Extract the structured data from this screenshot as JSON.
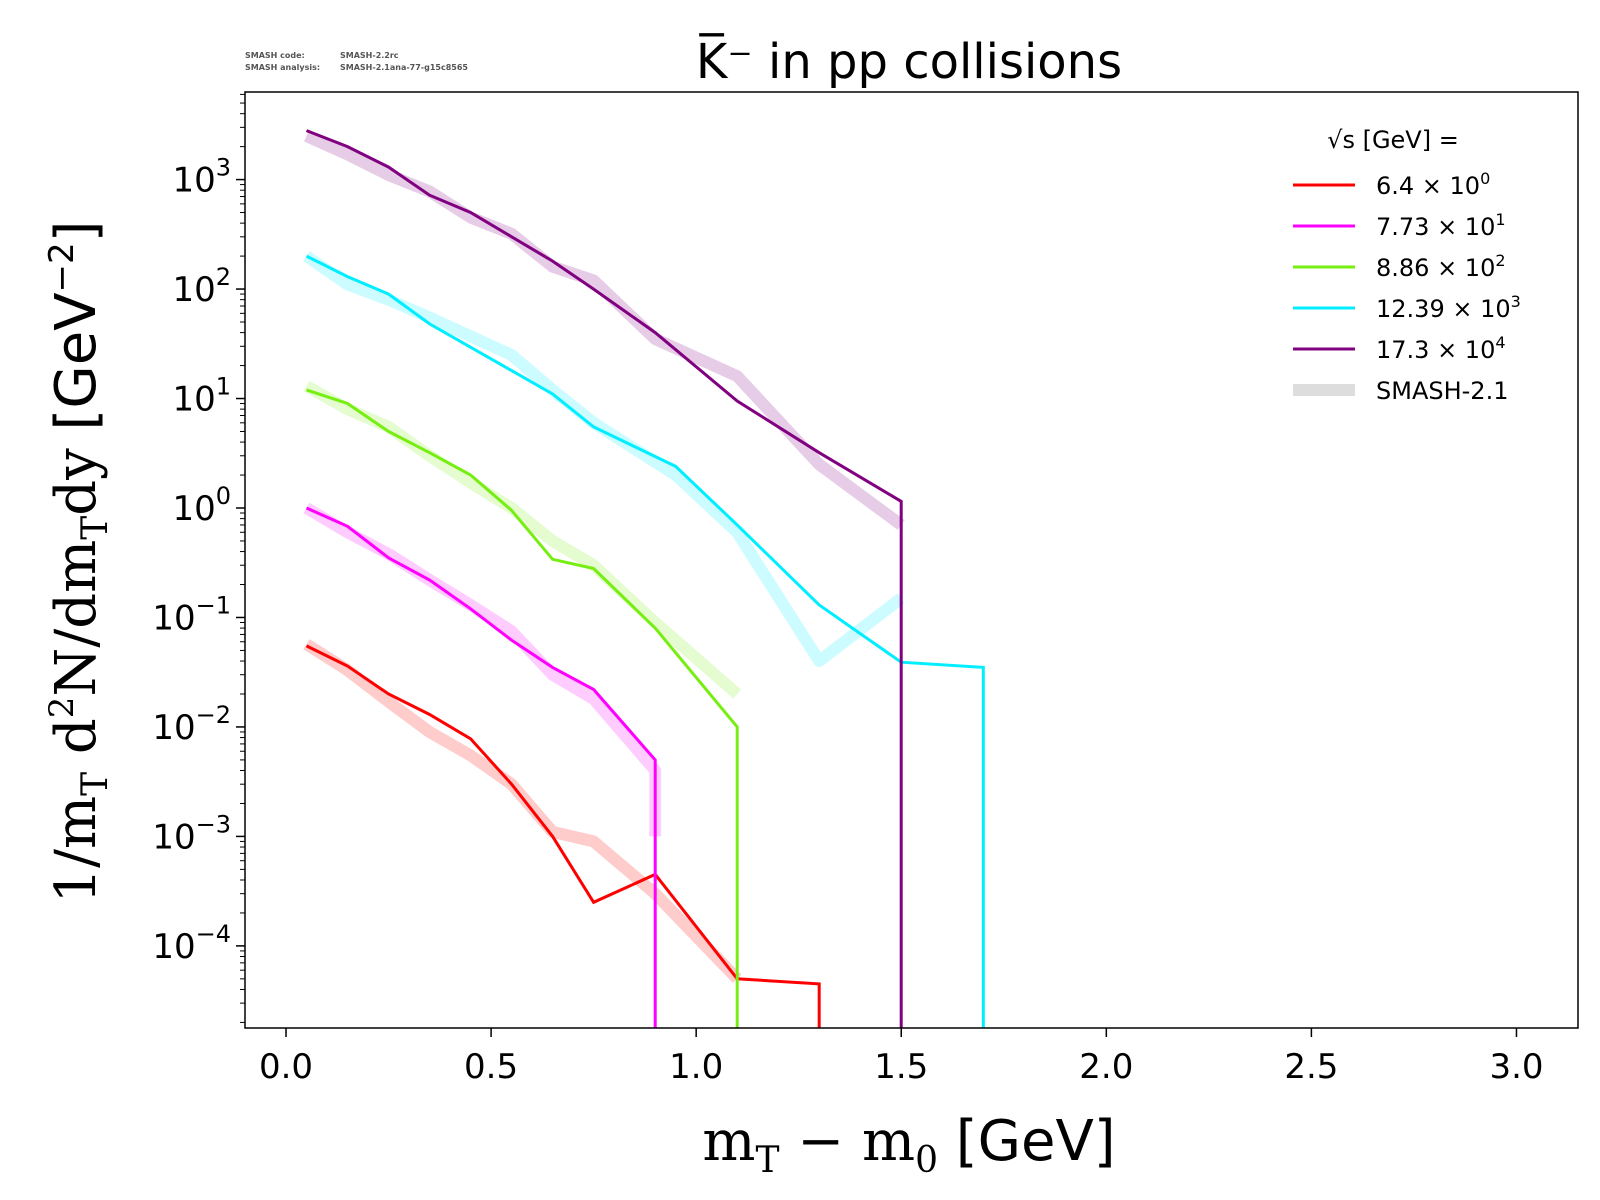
{
  "meta": {
    "code_label": "SMASH code:",
    "code_value": "SMASH-2.2rc",
    "analysis_label": "SMASH analysis:",
    "analysis_value": "SMASH-2.1ana-77-g15c8565"
  },
  "chart_data": {
    "type": "line",
    "title": "K̅⁻ in pp collisions",
    "xlabel": "m_T − m_0 [GeV]",
    "ylabel": "1/m_T d²N/dm_T dy [GeV⁻²]",
    "xlim": [
      -0.1,
      3.15
    ],
    "ylim_log10": [
      -4.75,
      3.8
    ],
    "yscale": "log",
    "x_ticks": [
      0.0,
      0.5,
      1.0,
      1.5,
      2.0,
      2.5,
      3.0
    ],
    "x_tick_labels": [
      "0.0",
      "0.5",
      "1.0",
      "1.5",
      "2.0",
      "2.5",
      "3.0"
    ],
    "y_tick_exponents": [
      3,
      2,
      1,
      0,
      -1,
      -2,
      -3,
      -4
    ],
    "grid": false,
    "legend": {
      "title": "√s  [GeV] =",
      "placement": "top-right",
      "reference_label": "SMASH-2.1",
      "reference_color": "#dddddd"
    },
    "series": [
      {
        "name": "6.4 × 10⁰",
        "mantissa": "6.4",
        "exponent": "0",
        "color": "#ff0000",
        "x": [
          0.05,
          0.15,
          0.25,
          0.35,
          0.45,
          0.55,
          0.65,
          0.75,
          0.9,
          1.1,
          1.3,
          1.3
        ],
        "y": [
          0.055,
          0.036,
          0.02,
          0.013,
          0.0078,
          0.003,
          0.001,
          0.00025,
          0.00045,
          5e-05,
          4.5e-05,
          1e-06
        ],
        "reference_y": [
          0.057,
          0.033,
          0.017,
          0.009,
          0.0055,
          0.003,
          0.0011,
          0.0009,
          0.0003,
          5e-05
        ]
      },
      {
        "name": "7.73 × 10¹",
        "mantissa": "7.73",
        "exponent": "1",
        "color": "#ff00ff",
        "x": [
          0.05,
          0.15,
          0.25,
          0.35,
          0.45,
          0.55,
          0.65,
          0.75,
          0.9,
          0.9
        ],
        "y": [
          1.0,
          0.68,
          0.35,
          0.22,
          0.12,
          0.062,
          0.035,
          0.022,
          0.005,
          1e-06
        ],
        "reference_y": [
          1.0,
          0.6,
          0.38,
          0.22,
          0.13,
          0.075,
          0.03,
          0.018,
          0.004,
          0.001
        ]
      },
      {
        "name": "8.86 × 10²",
        "mantissa": "8.86",
        "exponent": "2",
        "color": "#77ee11",
        "x": [
          0.05,
          0.15,
          0.25,
          0.35,
          0.45,
          0.55,
          0.65,
          0.75,
          0.9,
          1.1,
          1.1
        ],
        "y": [
          12,
          9,
          5,
          3.2,
          2.0,
          0.95,
          0.34,
          0.28,
          0.08,
          0.01,
          1e-06
        ],
        "reference_y": [
          13,
          8,
          5.5,
          3.0,
          1.7,
          1.0,
          0.5,
          0.3,
          0.09,
          0.02
        ]
      },
      {
        "name": "12.39 × 10³",
        "mantissa": "12.39",
        "exponent": "3",
        "color": "#00eeff",
        "x": [
          0.05,
          0.15,
          0.25,
          0.35,
          0.55,
          0.65,
          0.75,
          0.95,
          1.1,
          1.3,
          1.5,
          1.7,
          1.7
        ],
        "y": [
          200,
          130,
          90,
          48,
          18,
          11,
          5.5,
          2.4,
          0.7,
          0.13,
          0.039,
          0.035,
          1e-06
        ],
        "reference_x": [
          0.05,
          0.15,
          0.25,
          0.35,
          0.55,
          0.65,
          0.75,
          0.95,
          1.1,
          1.3,
          1.5
        ],
        "reference_y": [
          200,
          110,
          80,
          55,
          25,
          12,
          6,
          2.0,
          0.6,
          0.04,
          0.15
        ]
      },
      {
        "name": "17.3 × 10⁴",
        "mantissa": "17.3",
        "exponent": "4",
        "color": "#800080",
        "x": [
          0.05,
          0.15,
          0.25,
          0.35,
          0.45,
          0.55,
          0.65,
          0.75,
          0.9,
          1.1,
          1.3,
          1.5,
          1.5
        ],
        "y": [
          2800,
          2000,
          1300,
          720,
          500,
          300,
          180,
          100,
          40,
          9.5,
          3.2,
          1.15,
          1e-06
        ],
        "reference_y": [
          2500,
          1700,
          1100,
          780,
          450,
          320,
          160,
          120,
          35,
          16,
          2.5,
          0.7
        ]
      }
    ]
  }
}
